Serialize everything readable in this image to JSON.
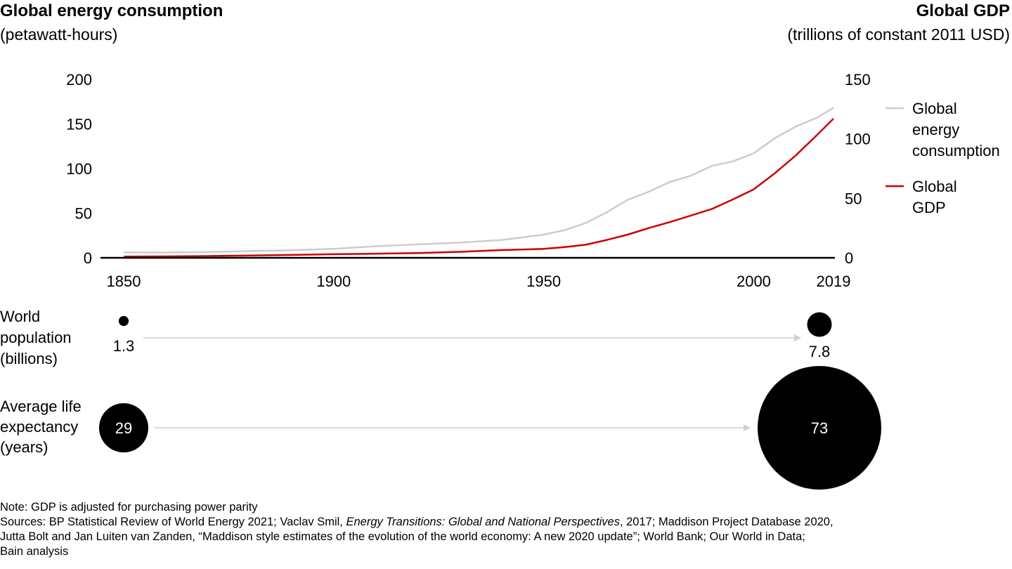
{
  "left_axis": {
    "title": "Global energy consumption",
    "unit": "(petawatt-hours)"
  },
  "right_axis": {
    "title": "Global GDP",
    "unit": "(trillions of constant 2011 USD)"
  },
  "chart_data": [
    {
      "type": "line",
      "x": [
        1850,
        1860,
        1870,
        1880,
        1890,
        1900,
        1910,
        1920,
        1930,
        1940,
        1950,
        1955,
        1960,
        1965,
        1970,
        1975,
        1980,
        1985,
        1990,
        1995,
        2000,
        2005,
        2010,
        2015,
        2019
      ],
      "series": [
        {
          "name": "Global energy consumption",
          "axis": "left",
          "color": "#cccccc",
          "values": [
            6,
            6,
            6.5,
            7.5,
            8.5,
            10,
            13,
            15,
            17,
            20,
            26,
            31,
            39,
            51,
            65,
            74,
            85,
            92,
            103,
            108,
            117,
            134,
            147,
            157,
            168
          ]
        },
        {
          "name": "Global GDP",
          "axis": "right",
          "color": "#cc0000",
          "values": [
            1,
            1.2,
            1.5,
            1.9,
            2.4,
            3,
            3.5,
            4,
            5,
            6.5,
            7.5,
            9,
            11,
            15,
            19.5,
            25,
            30,
            35.5,
            41,
            49,
            57.5,
            71,
            86,
            103,
            117
          ]
        }
      ],
      "xticks": [
        1850,
        1900,
        1950,
        2000,
        2019
      ],
      "ylim_left": [
        0,
        200
      ],
      "yticks_left": [
        0,
        50,
        100,
        150,
        200
      ],
      "ylim_right": [
        0,
        150
      ],
      "yticks_right": [
        0,
        50,
        100,
        150
      ],
      "legend": [
        "Global energy consumption",
        "Global GDP"
      ],
      "legend_lines": [
        [
          "Global",
          "energy",
          "consumption"
        ],
        [
          "Global",
          "GDP"
        ]
      ],
      "legend_placement": "right",
      "grid": false
    },
    {
      "type": "scatter",
      "label_lines": [
        "World",
        "population",
        "(billions)"
      ],
      "points": [
        {
          "x": 1850,
          "value": 1.3,
          "label": "1.3"
        },
        {
          "x": 2019,
          "value": 7.8,
          "label": "7.8"
        }
      ]
    },
    {
      "type": "scatter",
      "label_lines": [
        "Average life",
        "expectancy",
        "(years)"
      ],
      "points": [
        {
          "x": 1850,
          "value": 29,
          "label": "29"
        },
        {
          "x": 2019,
          "value": 73,
          "label": "73"
        }
      ]
    }
  ],
  "notes": {
    "note": "Note: GDP is adjusted for purchasing power parity",
    "sources_1_a": "Sources: BP Statistical Review of World Energy 2021; Vaclav Smil, ",
    "sources_1_b": "Energy Transitions: Global and National Perspectives",
    "sources_1_c": ", 2017; Maddison Project Database 2020,",
    "sources_2": "Jutta Bolt and Jan Luiten van Zanden, “Maddison style estimates of the evolution of the world economy: A new 2020 update”; World Bank; Our World in Data;",
    "sources_3": "Bain analysis"
  }
}
